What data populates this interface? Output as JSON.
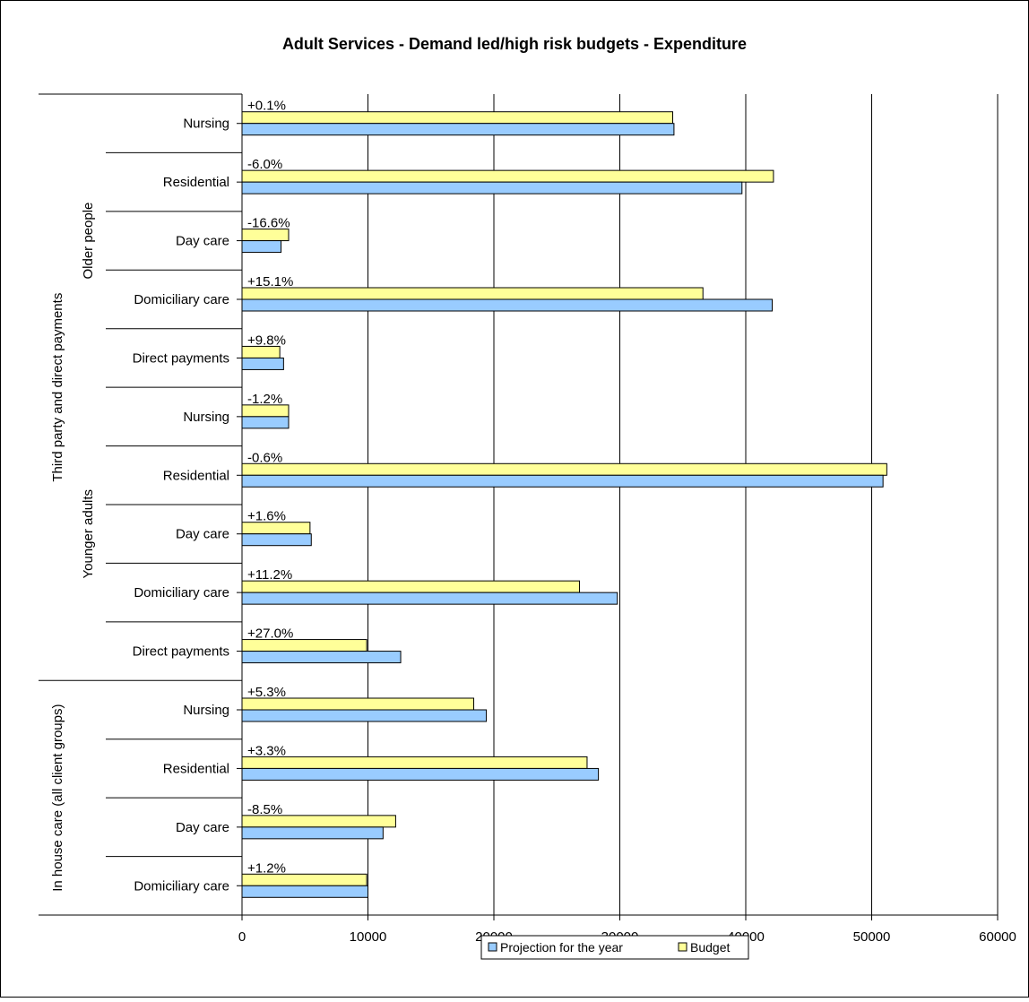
{
  "chart_data": {
    "type": "bar",
    "orientation": "horizontal",
    "title": "Adult Services - Demand led/high risk budgets - Expenditure",
    "xlim": [
      0,
      60000
    ],
    "x_ticks": [
      "0",
      "10000",
      "20000",
      "30000",
      "40000",
      "50000",
      "60000"
    ],
    "grid": true,
    "legend_position": "bottom",
    "group_labels": {
      "outer": [
        {
          "label": "Third party and direct payments",
          "start": 0,
          "end": 9
        },
        {
          "label": "In house care (all client groups)",
          "start": 10,
          "end": 13
        }
      ],
      "inner": [
        {
          "label": "Older people",
          "start": 0,
          "end": 4
        },
        {
          "label": "Younger adults",
          "start": 5,
          "end": 9
        }
      ]
    },
    "categories": [
      "Nursing",
      "Residential",
      "Day care",
      "Domiciliary care",
      "Direct payments",
      "Nursing",
      "Residential",
      "Day care",
      "Domiciliary care",
      "Direct payments",
      "Nursing",
      "Residential",
      "Day care",
      "Domiciliary care"
    ],
    "variance_labels": [
      "+0.1%",
      "-6.0%",
      "-16.6%",
      "+15.1%",
      "+9.8%",
      "-1.2%",
      "-0.6%",
      "+1.6%",
      "+11.2%",
      "+27.0%",
      "+5.3%",
      "+3.3%",
      "-8.5%",
      "+1.2%"
    ],
    "series": [
      {
        "name": "Projection for the year",
        "color": "#99ccff",
        "values": [
          34300,
          39700,
          3100,
          42100,
          3300,
          3700,
          50900,
          5500,
          29800,
          12600,
          19400,
          28300,
          11200,
          10000
        ]
      },
      {
        "name": "Budget",
        "color": "#ffff99",
        "values": [
          34200,
          42200,
          3700,
          36600,
          3000,
          3700,
          51200,
          5400,
          26800,
          9900,
          18400,
          27400,
          12200,
          9900
        ]
      }
    ]
  }
}
